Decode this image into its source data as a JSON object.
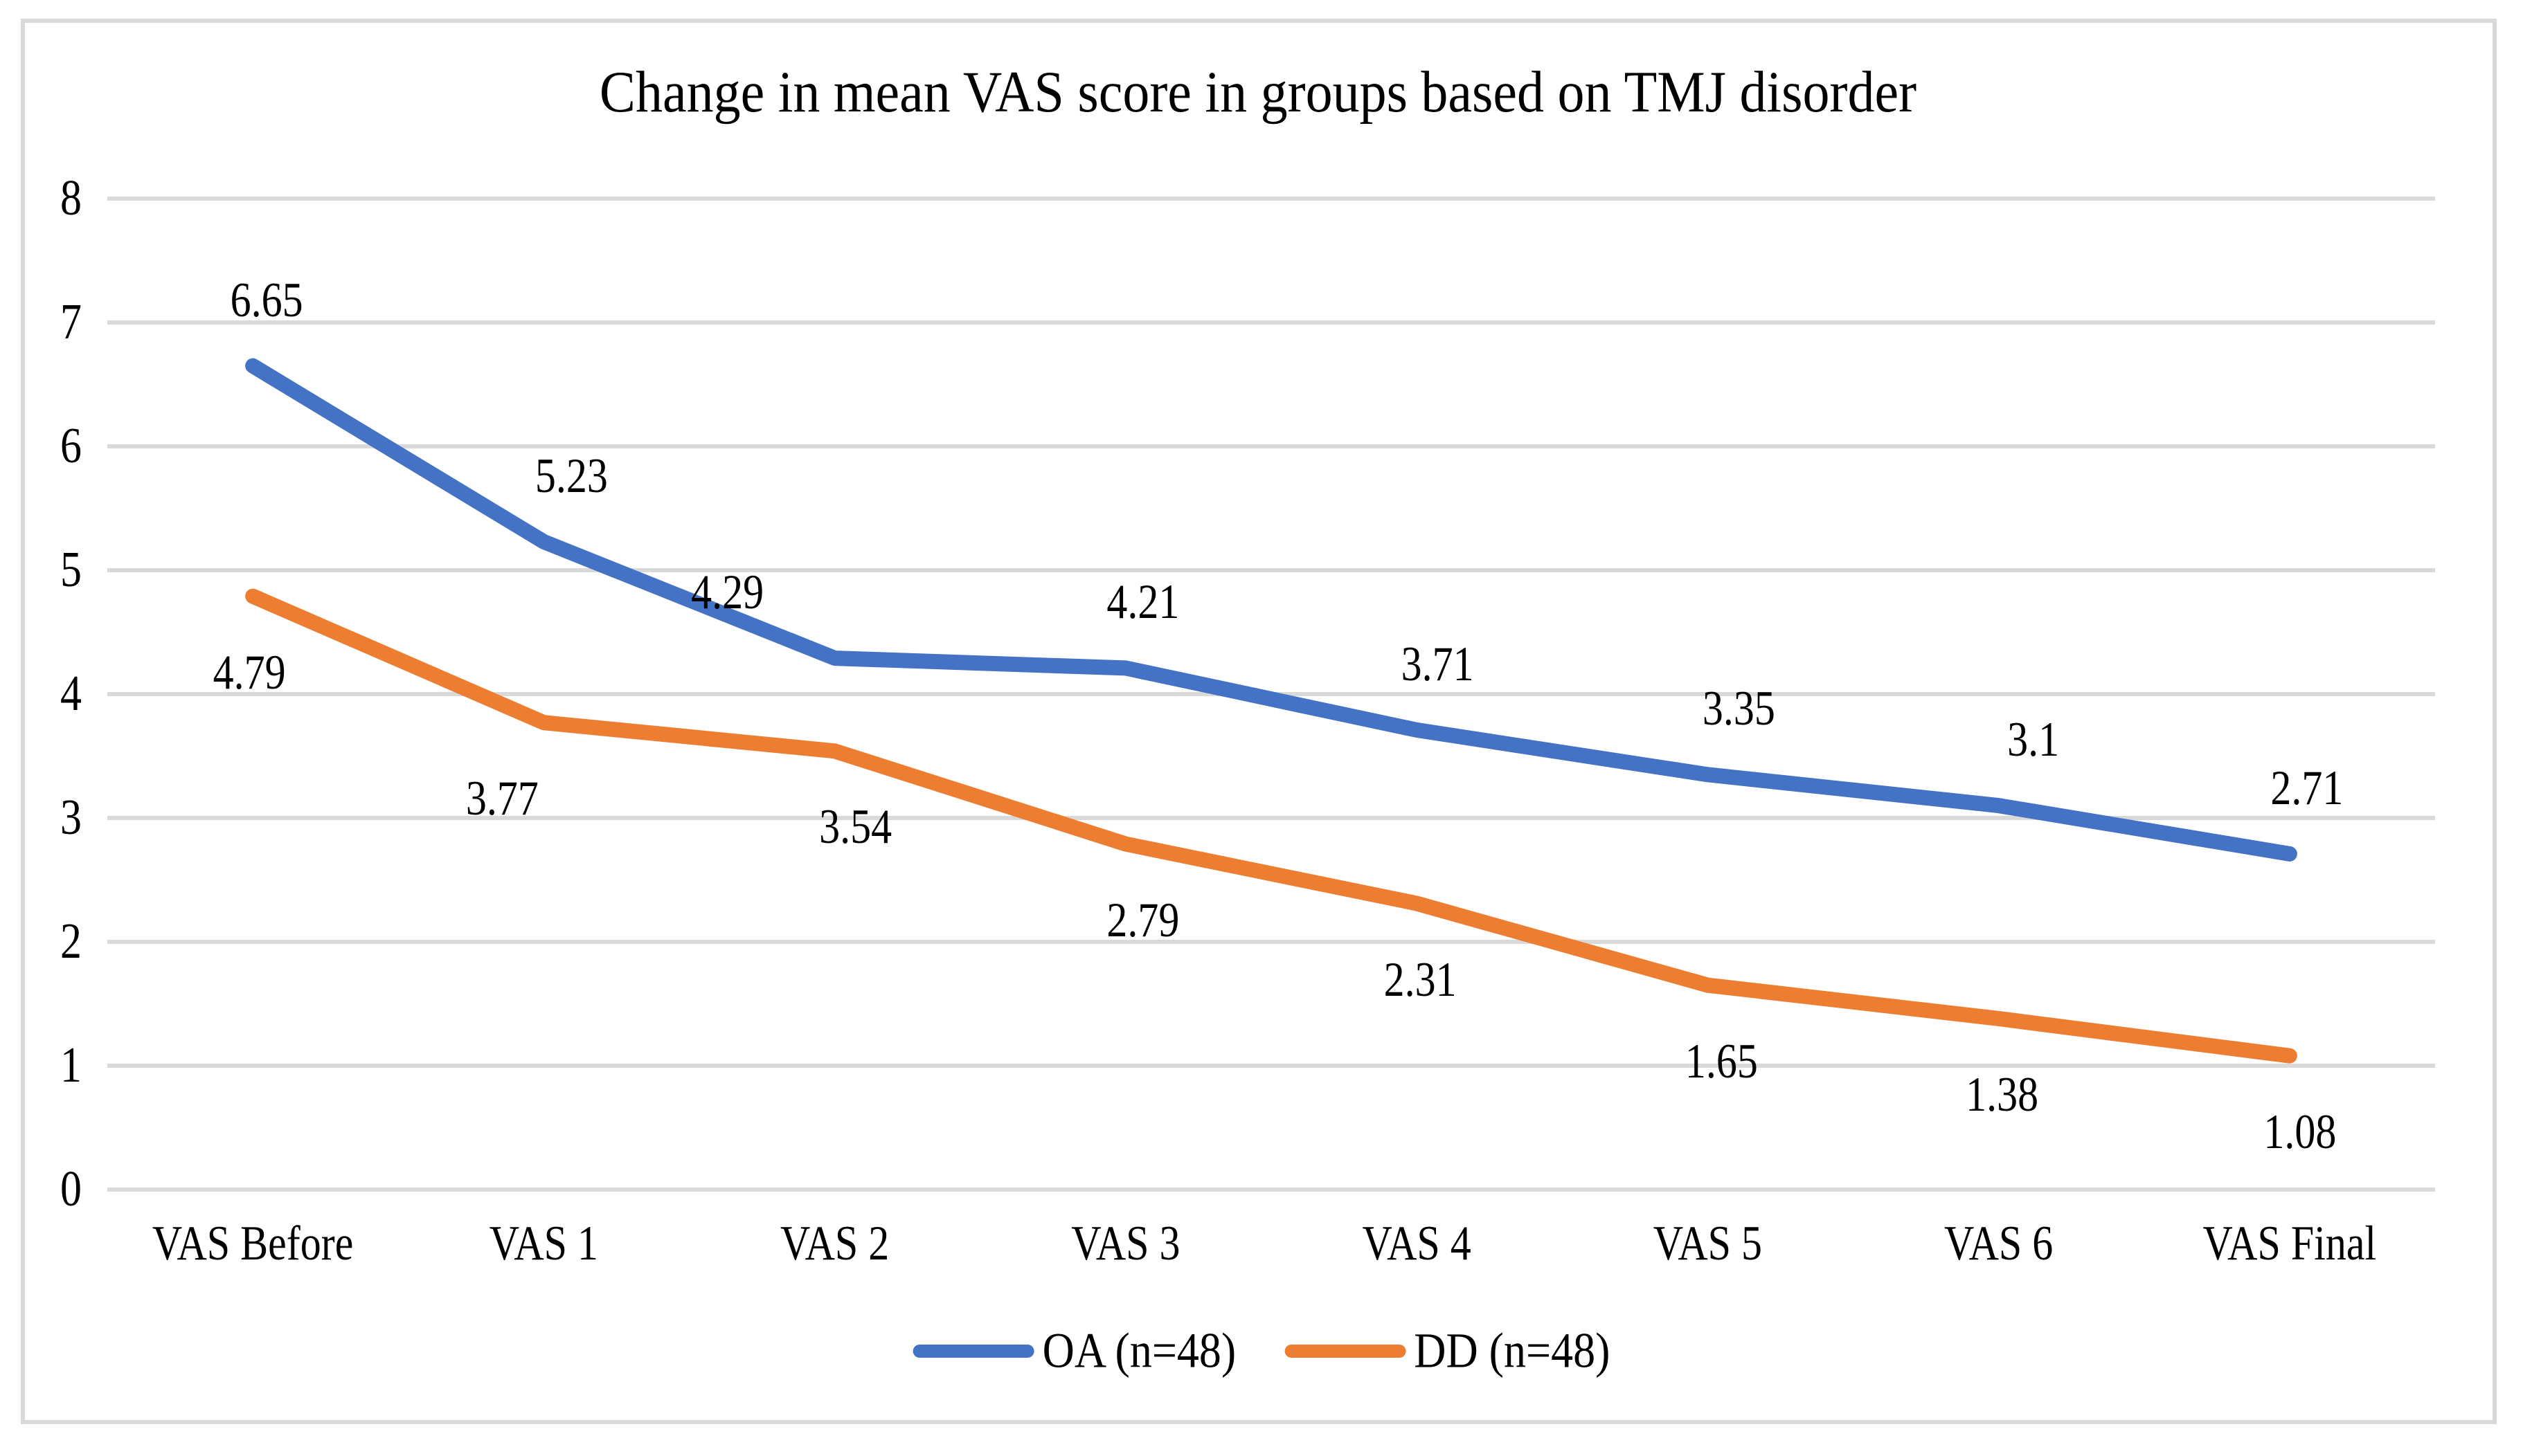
{
  "chart_data": {
    "type": "line",
    "title": "Change in mean VAS score in groups based on TMJ disorder",
    "categories": [
      "VAS Before",
      "VAS 1",
      "VAS 2",
      "VAS 3",
      "VAS 4",
      "VAS 5",
      "VAS 6",
      "VAS Final"
    ],
    "series": [
      {
        "name": "OA (n=48)",
        "color": "#4472C4",
        "values": [
          6.65,
          5.23,
          4.29,
          4.21,
          3.71,
          3.35,
          3.1,
          2.71
        ],
        "labels": [
          "6.65",
          "5.23",
          "4.29",
          "4.21",
          "3.71",
          "3.35",
          "3.1",
          "2.71"
        ],
        "label_position": "above"
      },
      {
        "name": "DD (n=48)",
        "color": "#ED7D31",
        "values": [
          4.79,
          3.77,
          3.54,
          2.79,
          2.31,
          1.65,
          1.38,
          1.08
        ],
        "labels": [
          "4.79",
          "3.77",
          "3.54",
          "2.79",
          "2.31",
          "1.65",
          "1.38",
          "1.08"
        ],
        "label_position": "below"
      }
    ],
    "y_axis": {
      "min": 0,
      "max": 8,
      "tick_step": 1,
      "tick_labels": [
        "0",
        "1",
        "2",
        "3",
        "4",
        "5",
        "6",
        "7",
        "8"
      ]
    },
    "x_axis": {
      "label": ""
    },
    "grid": "horizontal",
    "legend_position": "bottom",
    "colors": {
      "gridline": "#D9D9D9",
      "figure_border": "#D9D9D9",
      "text": "#000000",
      "background": "#FFFFFF"
    }
  }
}
